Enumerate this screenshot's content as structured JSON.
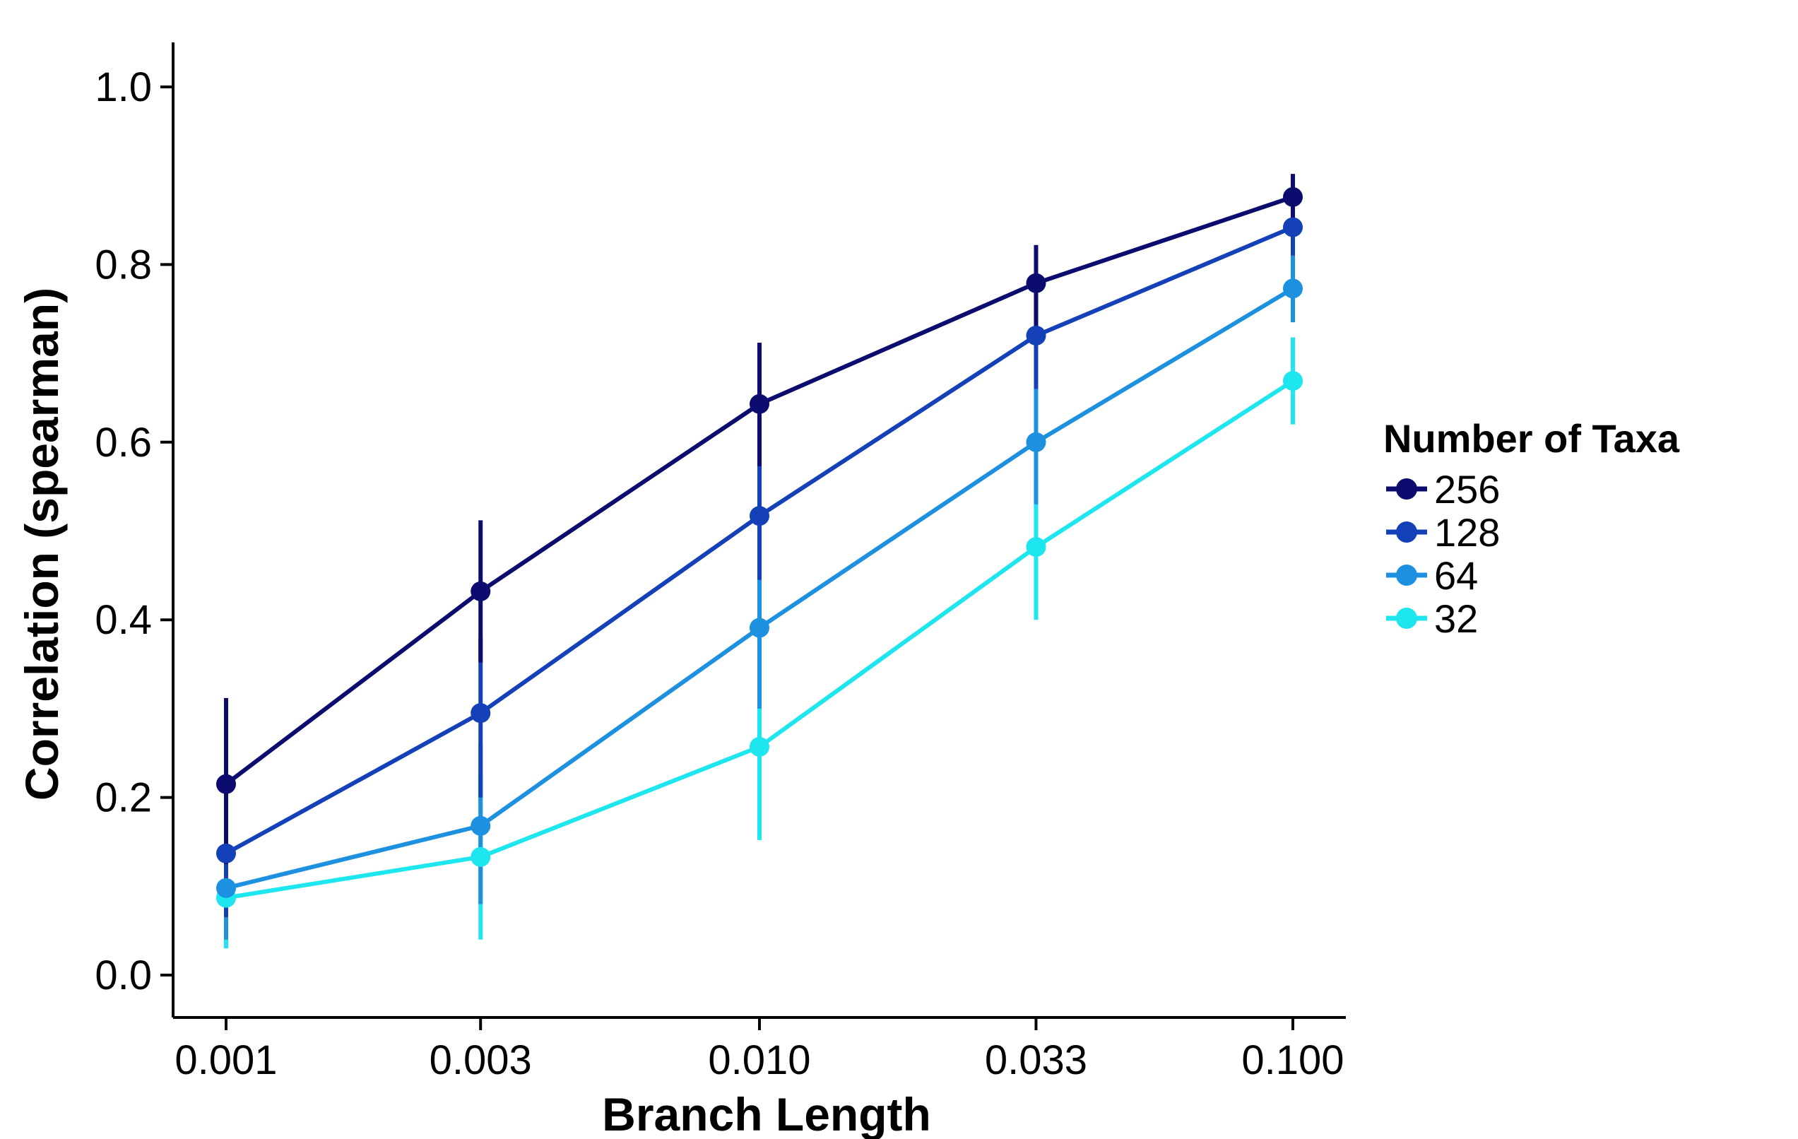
{
  "chart_data": {
    "type": "line",
    "xlabel": "Branch Length",
    "ylabel": "Correlation (spearman)",
    "x_scale": "log",
    "x": [
      0.001,
      0.003,
      0.01,
      0.033,
      0.1
    ],
    "x_tick_labels": [
      "0.001",
      "0.003",
      "0.010",
      "0.033",
      "0.100"
    ],
    "ylim": [
      -0.05,
      1.05
    ],
    "y_ticks": [
      0.0,
      0.2,
      0.4,
      0.6,
      0.8,
      1.0
    ],
    "y_tick_labels": [
      "0.0",
      "0.2",
      "0.4",
      "0.6",
      "0.8",
      "1.0"
    ],
    "grid": false,
    "legend": {
      "title": "Number of Taxa",
      "position": "right"
    },
    "series": [
      {
        "name": "256",
        "color": "#0b0c6e",
        "values": [
          0.215,
          0.432,
          0.643,
          0.779,
          0.876
        ],
        "lower": [
          0.125,
          0.352,
          0.573,
          0.72,
          0.85
        ],
        "upper": [
          0.312,
          0.512,
          0.712,
          0.822,
          0.902
        ]
      },
      {
        "name": "128",
        "color": "#1440b8",
        "values": [
          0.137,
          0.295,
          0.517,
          0.72,
          0.842
        ],
        "lower": [
          0.065,
          0.2,
          0.445,
          0.66,
          0.81
        ],
        "upper": [
          0.21,
          0.38,
          0.59,
          0.78,
          0.872
        ]
      },
      {
        "name": "64",
        "color": "#1e90e0",
        "values": [
          0.098,
          0.168,
          0.391,
          0.6,
          0.773
        ],
        "lower": [
          0.04,
          0.08,
          0.3,
          0.53,
          0.735
        ],
        "upper": [
          0.15,
          0.26,
          0.49,
          0.665,
          0.81
        ]
      },
      {
        "name": "32",
        "color": "#1ee6ee",
        "values": [
          0.087,
          0.133,
          0.257,
          0.482,
          0.669
        ],
        "lower": [
          0.03,
          0.04,
          0.152,
          0.4,
          0.62
        ],
        "upper": [
          0.145,
          0.23,
          0.36,
          0.56,
          0.718
        ]
      }
    ]
  }
}
